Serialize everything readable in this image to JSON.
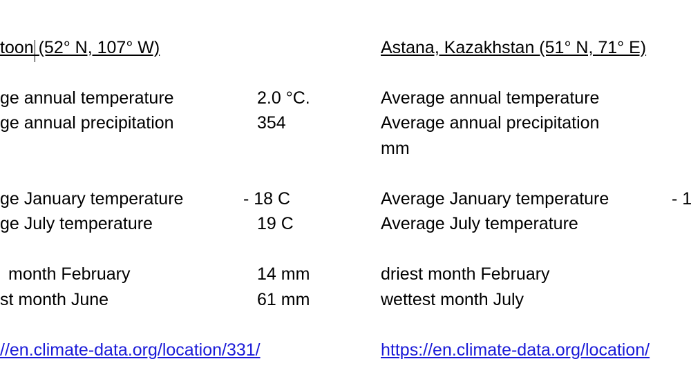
{
  "left": {
    "title": "toon (52° N, 107° W)",
    "rows": [
      {
        "label": "ge annual temperature",
        "value": "2.0 °C."
      },
      {
        "label": "ge annual precipitation",
        "value": "354"
      },
      {
        "label": "ge January temperature",
        "value": "- 18 C"
      },
      {
        "label": "ge July temperature",
        "value": "19 C"
      },
      {
        "label": "month February",
        "value": "14 mm"
      },
      {
        "label": "st month June",
        "value": "61 mm"
      }
    ],
    "link": "//en.climate-data.org/location/331/"
  },
  "right": {
    "title": "Astana, Kazakhstan (51° N, 71° E)",
    "rows": [
      {
        "label": "Average annual temperature"
      },
      {
        "label": "Average annual precipitation"
      },
      {
        "label": "mm"
      },
      {
        "label": "Average January temperature",
        "value": "- 1"
      },
      {
        "label": "Average July temperature"
      },
      {
        "label": "driest month February"
      },
      {
        "label": "wettest month July"
      }
    ],
    "link": "https://en.climate-data.org/location/"
  }
}
